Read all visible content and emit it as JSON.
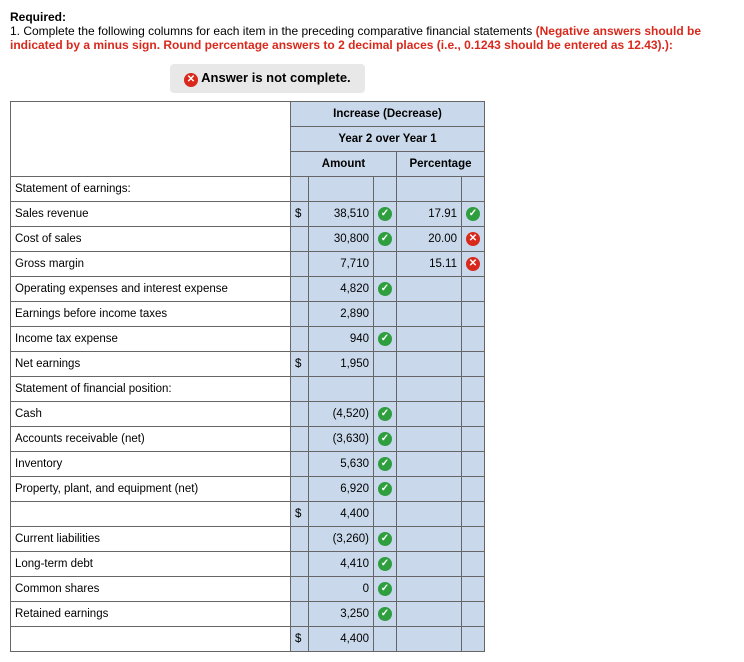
{
  "heading": {
    "required": "Required:",
    "line1": "1. Complete the following columns for each item in the preceding comparative financial statements ",
    "redpart": "(Negative answers should be indicated by a minus sign. Round percentage answers to 2 decimal places (i.e., 0.1243 should be entered as 12.43).):"
  },
  "banner": "Answer is not complete.",
  "table": {
    "title1": "Increase (Decrease)",
    "title2": "Year 2 over Year 1",
    "amount_label": "Amount",
    "percent_label": "Percentage"
  },
  "rows": [
    {
      "label": "Statement of earnings:",
      "indent": false
    },
    {
      "label": "Sales revenue",
      "indent": true,
      "cur": "$",
      "amount": "38,510",
      "amt_ok": true,
      "pct": "17.91",
      "pct_ok": true
    },
    {
      "label": "Cost of sales",
      "indent": true,
      "amount": "30,800",
      "amt_ok": true,
      "pct": "20.00",
      "pct_ok": false
    },
    {
      "label": "Gross margin",
      "indent": true,
      "amount": "7,710",
      "pct": "15.11",
      "pct_ok": false
    },
    {
      "label": "Operating expenses and interest expense",
      "indent": true,
      "amount": "4,820",
      "amt_ok": true
    },
    {
      "label": "Earnings before income taxes",
      "indent": true,
      "amount": "2,890"
    },
    {
      "label": "Income tax expense",
      "indent": true,
      "amount": "940",
      "amt_ok": true
    },
    {
      "label": "Net earnings",
      "indent": true,
      "cur": "$",
      "amount": "1,950"
    },
    {
      "label": "Statement of financial position:",
      "indent": false
    },
    {
      "label": "Cash",
      "indent": true,
      "amount": "(4,520)",
      "amt_ok": true
    },
    {
      "label": "Accounts receivable (net)",
      "indent": true,
      "amount": "(3,630)",
      "amt_ok": true
    },
    {
      "label": "Inventory",
      "indent": true,
      "amount": "5,630",
      "amt_ok": true
    },
    {
      "label": "Property, plant, and equipment (net)",
      "indent": true,
      "amount": "6,920",
      "amt_ok": true
    },
    {
      "label": "",
      "indent": true,
      "cur": "$",
      "amount": "4,400"
    },
    {
      "label": "Current liabilities",
      "indent": true,
      "amount": "(3,260)",
      "amt_ok": true
    },
    {
      "label": "Long-term debt",
      "indent": true,
      "amount": "4,410",
      "amt_ok": true
    },
    {
      "label": "Common shares",
      "indent": true,
      "amount": "0",
      "amt_ok": true
    },
    {
      "label": "Retained earnings",
      "indent": true,
      "amount": "3,250",
      "amt_ok": true
    },
    {
      "label": "",
      "indent": true,
      "cur": "$",
      "amount": "4,400"
    }
  ]
}
